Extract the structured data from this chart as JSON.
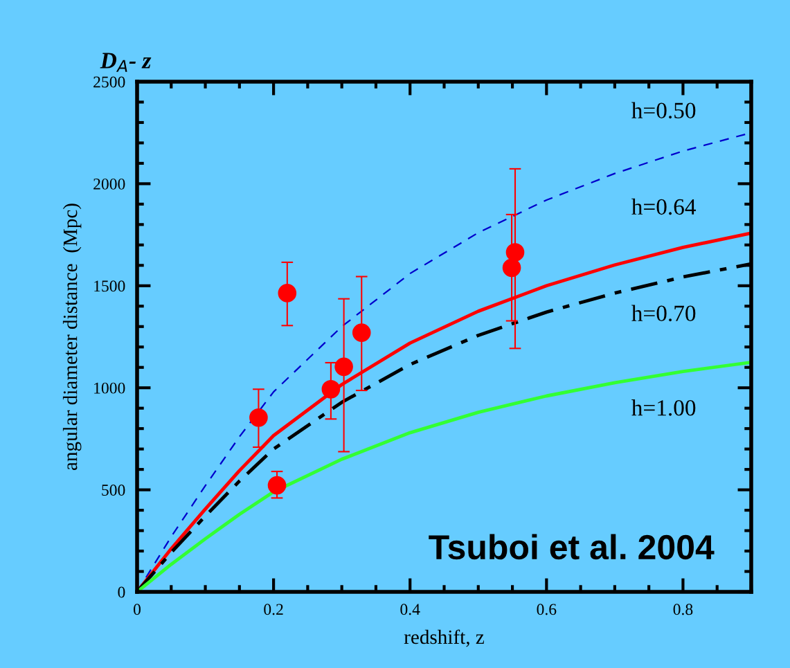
{
  "chart_data": {
    "type": "line",
    "title": "D$_{A}$- z",
    "xlabel": "redshift, z",
    "ylabel": "angular diameter distance  (Mpc)",
    "xlim": [
      0,
      0.9
    ],
    "xticks": [
      0,
      0.2,
      0.4,
      0.6,
      0.8
    ],
    "ylim": [
      0,
      2500
    ],
    "yticks": [
      0,
      500,
      1000,
      1500,
      2000,
      2500
    ],
    "grid": false,
    "legend": false,
    "series": [
      {
        "color": "#0000cc",
        "line_style": "dashed",
        "x": [
          0,
          0.05,
          0.1,
          0.15,
          0.2,
          0.3,
          0.4,
          0.5,
          0.6,
          0.7,
          0.8,
          0.9
        ],
        "values": [
          0,
          270,
          520,
          760,
          980,
          1300,
          1560,
          1760,
          1920,
          2050,
          2160,
          2250
        ]
      },
      {
        "color": "#ff0000",
        "line_style": "solid",
        "x": [
          0,
          0.05,
          0.1,
          0.15,
          0.2,
          0.3,
          0.4,
          0.5,
          0.6,
          0.7,
          0.8,
          0.9
        ],
        "values": [
          0,
          211,
          406,
          594,
          766,
          1016,
          1219,
          1375,
          1500,
          1602,
          1688,
          1758
        ]
      },
      {
        "color": "#000000",
        "line_style": "dashdot",
        "x": [
          0,
          0.05,
          0.1,
          0.15,
          0.2,
          0.3,
          0.4,
          0.5,
          0.6,
          0.7,
          0.8,
          0.9
        ],
        "values": [
          0,
          193,
          371,
          543,
          700,
          929,
          1114,
          1257,
          1371,
          1464,
          1543,
          1607
        ]
      },
      {
        "color": "#33ff33",
        "line_style": "solid",
        "x": [
          0,
          0.05,
          0.1,
          0.15,
          0.2,
          0.3,
          0.4,
          0.5,
          0.6,
          0.7,
          0.8,
          0.9
        ],
        "values": [
          0,
          135,
          260,
          380,
          490,
          650,
          780,
          880,
          960,
          1025,
          1080,
          1125
        ]
      },
      {
        "type": "scatter",
        "color": "#ff0000",
        "marker": "circle",
        "x": [
          0.178,
          0.22,
          0.205,
          0.284,
          0.303,
          0.329,
          0.554,
          0.549
        ],
        "values": [
          854,
          1464,
          522,
          993,
          1103,
          1270,
          1664,
          1588
        ],
        "errors": [
          [
            709,
            993
          ],
          [
            1305,
            1615
          ],
          [
            460,
            590
          ],
          [
            847,
            1123
          ],
          [
            687,
            1436
          ],
          [
            987,
            1545
          ],
          [
            1193,
            2073
          ],
          [
            1328,
            1849
          ]
        ]
      }
    ],
    "annotations": [
      "h=0.50",
      "h=0.64",
      "h=0.70",
      "h=1.00",
      "Tsuboi et al. 2004"
    ]
  }
}
